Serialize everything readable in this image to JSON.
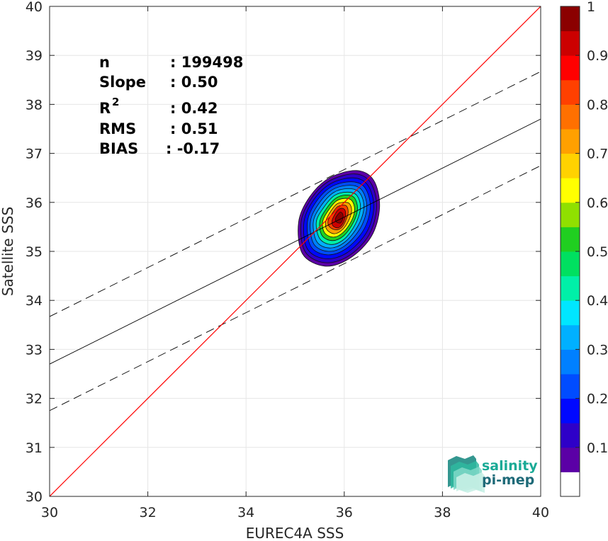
{
  "chart_data": {
    "type": "scatter",
    "subtype": "density-contour",
    "xlabel": "EUREC4A SSS",
    "ylabel": "Satellite SSS",
    "xlim": [
      30,
      40
    ],
    "ylim": [
      30,
      40
    ],
    "x_ticks": [
      "30",
      "32",
      "34",
      "36",
      "38",
      "40"
    ],
    "y_ticks": [
      "30",
      "31",
      "32",
      "33",
      "34",
      "35",
      "36",
      "37",
      "38",
      "39",
      "40"
    ],
    "grid": true,
    "stats": [
      {
        "label": "n",
        "value": ": 199498"
      },
      {
        "label": "Slope",
        "value": ": 0.50"
      },
      {
        "label": "R",
        "sup": "2",
        "value": ": 0.42"
      },
      {
        "label": "RMS",
        "value": ": 0.51"
      },
      {
        "label": "BIAS",
        "value": ": -0.17"
      }
    ],
    "lines": {
      "identity": {
        "x": [
          30,
          40
        ],
        "y": [
          30,
          40
        ],
        "color": "#ff0000"
      },
      "fit": {
        "x": [
          30,
          40
        ],
        "y": [
          32.7,
          37.7
        ],
        "color": "#000000"
      },
      "fit_upper": {
        "x": [
          30,
          40
        ],
        "y": [
          33.67,
          38.67
        ],
        "color": "#000000",
        "dash": true
      },
      "fit_lower": {
        "x": [
          30,
          40
        ],
        "y": [
          31.75,
          36.75
        ],
        "color": "#000000",
        "dash": true
      }
    },
    "density_peak": {
      "x": 35.95,
      "y": 35.75
    },
    "colorbar": {
      "ticks": [
        "0.1",
        "0.2",
        "0.3",
        "0.4",
        "0.5",
        "0.6",
        "0.7",
        "0.8",
        "0.9",
        "1"
      ],
      "range": [
        0,
        1
      ],
      "colors": [
        "#ffffff",
        "#5b00a6",
        "#2e00c8",
        "#0008ff",
        "#004cff",
        "#0080ff",
        "#00b0ff",
        "#00e6ff",
        "#00f0a8",
        "#00e060",
        "#20cf20",
        "#90e000",
        "#ffff00",
        "#ffd200",
        "#ffa000",
        "#ff7000",
        "#ff4000",
        "#ff0000",
        "#cc0000",
        "#8b0000"
      ]
    },
    "contours": [
      {
        "level": 0.05,
        "color": "#5b00a6",
        "points": [
          [
            35.15,
            34.95
          ],
          [
            35.6,
            34.7
          ],
          [
            36.1,
            34.85
          ],
          [
            36.55,
            35.3
          ],
          [
            36.72,
            35.9
          ],
          [
            36.6,
            36.45
          ],
          [
            36.25,
            36.65
          ],
          [
            35.7,
            36.5
          ],
          [
            35.3,
            36.12
          ],
          [
            35.07,
            35.6
          ]
        ]
      },
      {
        "level": 0.1,
        "color": "#2e00c8",
        "points": [
          [
            35.2,
            35.0
          ],
          [
            35.6,
            34.77
          ],
          [
            36.08,
            34.9
          ],
          [
            36.5,
            35.33
          ],
          [
            36.66,
            35.9
          ],
          [
            36.54,
            36.4
          ],
          [
            36.22,
            36.58
          ],
          [
            35.7,
            36.44
          ],
          [
            35.33,
            36.08
          ],
          [
            35.12,
            35.6
          ]
        ]
      },
      {
        "level": 0.15,
        "color": "#0008ff",
        "points": [
          [
            35.25,
            35.05
          ],
          [
            35.62,
            34.85
          ],
          [
            36.05,
            34.97
          ],
          [
            36.45,
            35.38
          ],
          [
            36.6,
            35.9
          ],
          [
            36.48,
            36.35
          ],
          [
            36.18,
            36.5
          ],
          [
            35.72,
            36.38
          ],
          [
            35.37,
            36.04
          ],
          [
            35.18,
            35.6
          ]
        ]
      },
      {
        "level": 0.2,
        "color": "#004cff",
        "points": [
          [
            35.32,
            35.1
          ],
          [
            35.65,
            34.93
          ],
          [
            36.03,
            35.05
          ],
          [
            36.39,
            35.43
          ],
          [
            36.53,
            35.9
          ],
          [
            36.42,
            36.3
          ],
          [
            36.15,
            36.42
          ],
          [
            35.74,
            36.32
          ],
          [
            35.42,
            36.0
          ],
          [
            35.25,
            35.6
          ]
        ]
      },
      {
        "level": 0.25,
        "color": "#0080ff",
        "points": [
          [
            35.38,
            35.15
          ],
          [
            35.68,
            35.0
          ],
          [
            36.02,
            35.12
          ],
          [
            36.33,
            35.48
          ],
          [
            36.46,
            35.9
          ],
          [
            36.36,
            36.25
          ],
          [
            36.12,
            36.35
          ],
          [
            35.76,
            36.26
          ],
          [
            35.47,
            35.96
          ],
          [
            35.31,
            35.6
          ]
        ]
      },
      {
        "level": 0.3,
        "color": "#00b0ff",
        "points": [
          [
            35.44,
            35.2
          ],
          [
            35.7,
            35.07
          ],
          [
            36.0,
            35.18
          ],
          [
            36.28,
            35.52
          ],
          [
            36.4,
            35.9
          ],
          [
            36.31,
            36.2
          ],
          [
            36.09,
            36.28
          ],
          [
            35.78,
            36.2
          ],
          [
            35.52,
            35.92
          ],
          [
            35.37,
            35.6
          ]
        ]
      },
      {
        "level": 0.4,
        "color": "#00f0a8",
        "points": [
          [
            35.5,
            35.26
          ],
          [
            35.74,
            35.14
          ],
          [
            36.0,
            35.25
          ],
          [
            36.23,
            35.56
          ],
          [
            36.33,
            35.9
          ],
          [
            36.25,
            36.15
          ],
          [
            36.06,
            36.21
          ],
          [
            35.8,
            36.14
          ],
          [
            35.57,
            35.88
          ],
          [
            35.43,
            35.6
          ]
        ]
      },
      {
        "level": 0.5,
        "color": "#20cf20",
        "points": [
          [
            35.55,
            35.32
          ],
          [
            35.76,
            35.22
          ],
          [
            35.99,
            35.32
          ],
          [
            36.19,
            35.6
          ],
          [
            36.27,
            35.88
          ],
          [
            36.2,
            36.1
          ],
          [
            36.03,
            36.15
          ],
          [
            35.82,
            36.08
          ],
          [
            35.62,
            35.85
          ],
          [
            35.5,
            35.6
          ]
        ]
      },
      {
        "level": 0.6,
        "color": "#ffff00",
        "points": [
          [
            35.6,
            35.38
          ],
          [
            35.78,
            35.29
          ],
          [
            35.98,
            35.39
          ],
          [
            36.15,
            35.63
          ],
          [
            36.21,
            35.86
          ],
          [
            36.15,
            36.04
          ],
          [
            36.0,
            36.08
          ],
          [
            35.83,
            36.02
          ],
          [
            35.66,
            35.81
          ],
          [
            35.56,
            35.6
          ]
        ]
      },
      {
        "level": 0.7,
        "color": "#ffa000",
        "points": [
          [
            35.65,
            35.44
          ],
          [
            35.8,
            35.36
          ],
          [
            35.97,
            35.45
          ],
          [
            36.1,
            35.65
          ],
          [
            36.15,
            35.84
          ],
          [
            36.1,
            35.98
          ],
          [
            35.97,
            36.0
          ],
          [
            35.84,
            35.96
          ],
          [
            35.7,
            35.78
          ],
          [
            35.62,
            35.6
          ]
        ]
      },
      {
        "level": 0.8,
        "color": "#ff4000",
        "points": [
          [
            35.7,
            35.5
          ],
          [
            35.83,
            35.44
          ],
          [
            35.96,
            35.5
          ],
          [
            36.05,
            35.68
          ],
          [
            36.08,
            35.82
          ],
          [
            36.04,
            35.93
          ],
          [
            35.95,
            35.94
          ],
          [
            35.85,
            35.9
          ],
          [
            35.74,
            35.75
          ],
          [
            35.67,
            35.62
          ]
        ]
      },
      {
        "level": 0.9,
        "color": "#cc0000",
        "points": [
          [
            35.77,
            35.52
          ],
          [
            35.87,
            35.48
          ],
          [
            35.96,
            35.55
          ],
          [
            36.02,
            35.7
          ],
          [
            36.02,
            35.83
          ],
          [
            35.96,
            35.88
          ],
          [
            35.88,
            35.85
          ],
          [
            35.8,
            35.74
          ],
          [
            35.75,
            35.62
          ]
        ]
      },
      {
        "level": 0.97,
        "color": "#8b0000",
        "points": [
          [
            35.84,
            35.6
          ],
          [
            35.92,
            35.58
          ],
          [
            35.97,
            35.66
          ],
          [
            35.97,
            35.76
          ],
          [
            35.92,
            35.8
          ],
          [
            35.86,
            35.74
          ],
          [
            35.82,
            35.66
          ]
        ]
      }
    ]
  },
  "logo": {
    "line1": "salinity",
    "line2": "pi-mep",
    "color1": "#1aaa96",
    "color2": "#1e6a78"
  }
}
